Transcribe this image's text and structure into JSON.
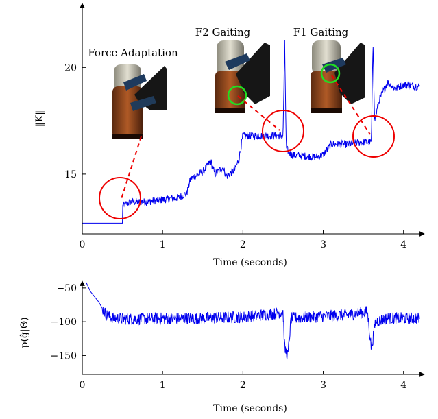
{
  "chart_data": [
    {
      "type": "line",
      "xlabel": "Time (seconds)",
      "ylabel": "‖K‖",
      "xlim": [
        0,
        4.25
      ],
      "ylim": [
        12.2,
        23
      ],
      "x_ticks": [
        0,
        1,
        2,
        3,
        4
      ],
      "y_ticks": [
        15,
        20
      ],
      "grid": false,
      "color": "#0000ee",
      "series_keypoints": [
        [
          0,
          12.7
        ],
        [
          0.5,
          12.7
        ],
        [
          0.5,
          13.5
        ],
        [
          0.6,
          13.7
        ],
        [
          0.8,
          13.7
        ],
        [
          1.0,
          13.8
        ],
        [
          1.2,
          13.9
        ],
        [
          1.3,
          14.1
        ],
        [
          1.35,
          14.8
        ],
        [
          1.5,
          15.1
        ],
        [
          1.6,
          15.6
        ],
        [
          1.65,
          15.0
        ],
        [
          1.75,
          15.3
        ],
        [
          1.8,
          14.9
        ],
        [
          1.9,
          15.2
        ],
        [
          1.95,
          15.7
        ],
        [
          2.0,
          16.8
        ],
        [
          2.2,
          16.8
        ],
        [
          2.5,
          16.8
        ],
        [
          2.52,
          21.1
        ],
        [
          2.54,
          16.2
        ],
        [
          2.6,
          15.9
        ],
        [
          2.9,
          15.8
        ],
        [
          3.0,
          15.9
        ],
        [
          3.1,
          16.4
        ],
        [
          3.3,
          16.4
        ],
        [
          3.5,
          16.5
        ],
        [
          3.6,
          16.5
        ],
        [
          3.62,
          21.3
        ],
        [
          3.64,
          17.5
        ],
        [
          3.7,
          18.5
        ],
        [
          3.8,
          19.3
        ],
        [
          3.9,
          19.0
        ],
        [
          4.0,
          19.2
        ],
        [
          4.2,
          19.1
        ]
      ],
      "annotations": [
        {
          "label": "Force Adaptation",
          "t": 0.5,
          "value": 13.5
        },
        {
          "label": "F2 Gaiting",
          "t": 2.5,
          "value": 16.8
        },
        {
          "label": "F1 Gaiting",
          "t": 3.6,
          "value": 16.5
        }
      ]
    },
    {
      "type": "line",
      "xlabel": "Time (seconds)",
      "ylabel": "p(ĝ|Θ)",
      "xlim": [
        0,
        4.25
      ],
      "ylim": [
        -178,
        -40
      ],
      "x_ticks": [
        0,
        1,
        2,
        3,
        4
      ],
      "y_ticks": [
        -50,
        -100,
        -150
      ],
      "grid": false,
      "color": "#0000ee",
      "series_keypoints": [
        [
          0.05,
          -42
        ],
        [
          0.1,
          -55
        ],
        [
          0.2,
          -70
        ],
        [
          0.3,
          -90
        ],
        [
          0.4,
          -95
        ],
        [
          0.6,
          -96
        ],
        [
          1.0,
          -95
        ],
        [
          1.5,
          -95
        ],
        [
          2.0,
          -93
        ],
        [
          2.4,
          -88
        ],
        [
          2.5,
          -85
        ],
        [
          2.52,
          -140
        ],
        [
          2.56,
          -150
        ],
        [
          2.6,
          -95
        ],
        [
          2.8,
          -93
        ],
        [
          3.0,
          -92
        ],
        [
          3.3,
          -90
        ],
        [
          3.55,
          -85
        ],
        [
          3.6,
          -140
        ],
        [
          3.65,
          -100
        ],
        [
          3.8,
          -95
        ],
        [
          4.0,
          -95
        ],
        [
          4.2,
          -95
        ]
      ]
    }
  ]
}
